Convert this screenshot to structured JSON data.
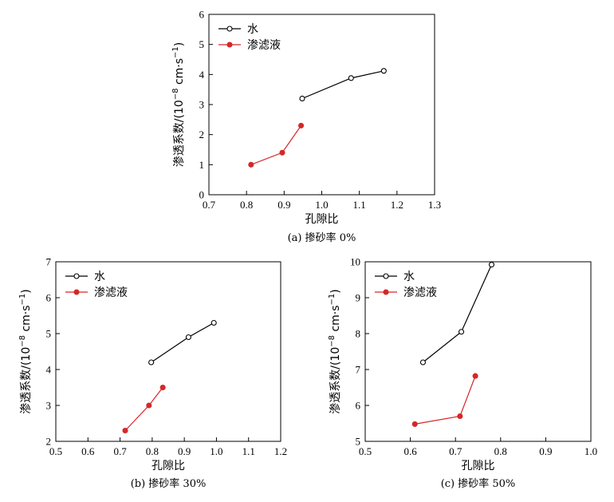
{
  "chart_data": [
    {
      "type": "line",
      "caption": "(a) 掺砂率 0%",
      "xlabel": "孔隙比",
      "ylabel_main": "渗透系数/(10",
      "ylabel_exp": "−8",
      "ylabel_unit": " cm·s",
      "ylabel_exp2": "−1",
      "ylabel_close": ")",
      "xlim": [
        0.7,
        1.3
      ],
      "ylim": [
        0,
        6
      ],
      "xticks": [
        "0.7",
        "0.8",
        "0.9",
        "1.0",
        "1.1",
        "1.2",
        "1.3"
      ],
      "yticks": [
        "0",
        "1",
        "2",
        "3",
        "4",
        "5",
        "6"
      ],
      "legend_position": "top-left",
      "series": [
        {
          "name": "水",
          "color": "#000000",
          "marker": "open-circle",
          "x": [
            0.948,
            1.078,
            1.165
          ],
          "y": [
            3.2,
            3.88,
            4.12
          ]
        },
        {
          "name": "渗滤液",
          "color": "#d62728",
          "marker": "filled-circle",
          "x": [
            0.812,
            0.895,
            0.945
          ],
          "y": [
            1.0,
            1.4,
            2.3
          ]
        }
      ]
    },
    {
      "type": "line",
      "caption": "(b) 掺砂率 30%",
      "xlabel": "孔隙比",
      "ylabel_main": "渗透系数/(10",
      "ylabel_exp": "−8",
      "ylabel_unit": " cm·s",
      "ylabel_exp2": "−1",
      "ylabel_close": ")",
      "xlim": [
        0.5,
        1.2
      ],
      "ylim": [
        2,
        7
      ],
      "xticks": [
        "0.5",
        "0.6",
        "0.7",
        "0.8",
        "0.9",
        "1.0",
        "1.1",
        "1.2"
      ],
      "yticks": [
        "2",
        "3",
        "4",
        "5",
        "6",
        "7"
      ],
      "legend_position": "top-left",
      "series": [
        {
          "name": "水",
          "color": "#000000",
          "marker": "open-circle",
          "x": [
            0.797,
            0.913,
            0.992
          ],
          "y": [
            4.2,
            4.9,
            5.3
          ]
        },
        {
          "name": "渗滤液",
          "color": "#d62728",
          "marker": "filled-circle",
          "x": [
            0.716,
            0.79,
            0.833
          ],
          "y": [
            2.3,
            3.0,
            3.5
          ]
        }
      ]
    },
    {
      "type": "line",
      "caption": "(c) 掺砂率 50%",
      "xlabel": "孔隙比",
      "ylabel_main": "渗透系数/(10",
      "ylabel_exp": "−8",
      "ylabel_unit": " cm·s",
      "ylabel_exp2": "−1",
      "ylabel_close": ")",
      "xlim": [
        0.5,
        1.0
      ],
      "ylim": [
        5,
        10
      ],
      "xticks": [
        "0.5",
        "0.6",
        "0.7",
        "0.8",
        "0.9",
        "1.0"
      ],
      "yticks": [
        "5",
        "6",
        "7",
        "8",
        "9",
        "10"
      ],
      "legend_position": "top-left",
      "series": [
        {
          "name": "水",
          "color": "#000000",
          "marker": "open-circle",
          "x": [
            0.628,
            0.713,
            0.78
          ],
          "y": [
            7.2,
            8.05,
            9.92
          ]
        },
        {
          "name": "渗滤液",
          "color": "#d62728",
          "marker": "filled-circle",
          "x": [
            0.61,
            0.71,
            0.744
          ],
          "y": [
            5.48,
            5.7,
            6.82
          ]
        }
      ]
    }
  ]
}
